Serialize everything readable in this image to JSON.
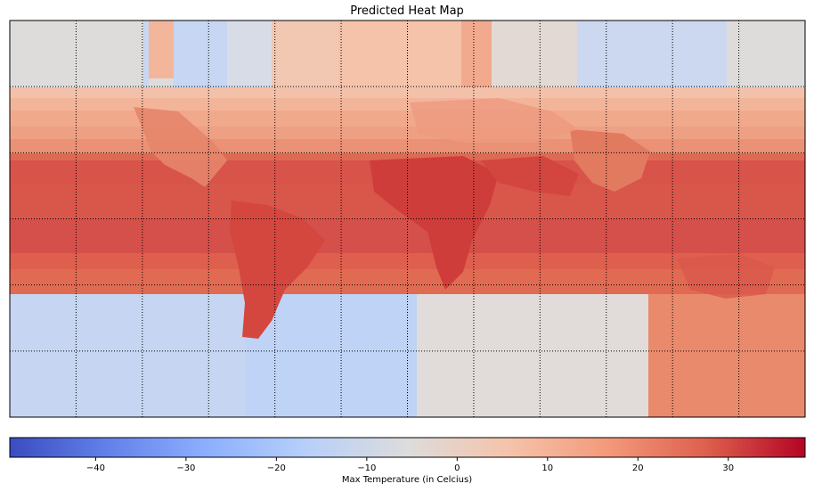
{
  "title": "Predicted Heat Map",
  "colorbar": {
    "label": "Max Temperature (in Celcius)",
    "colormap": "coolwarm",
    "min": -49.5,
    "max": 38.5,
    "ticks": [
      -40,
      -30,
      -20,
      -10,
      0,
      10,
      20,
      30
    ],
    "tick_labels": [
      "−40",
      "−30",
      "−20",
      "−10",
      "0",
      "10",
      "20",
      "30"
    ]
  },
  "grid": {
    "style": "dotted",
    "meridian_count": 12,
    "parallel_count": 6
  },
  "colors": {
    "cold_extreme": "#3b4cc0",
    "neutral": "#dddcdc",
    "hot_extreme": "#b40426",
    "grid_line": "#000000"
  }
}
